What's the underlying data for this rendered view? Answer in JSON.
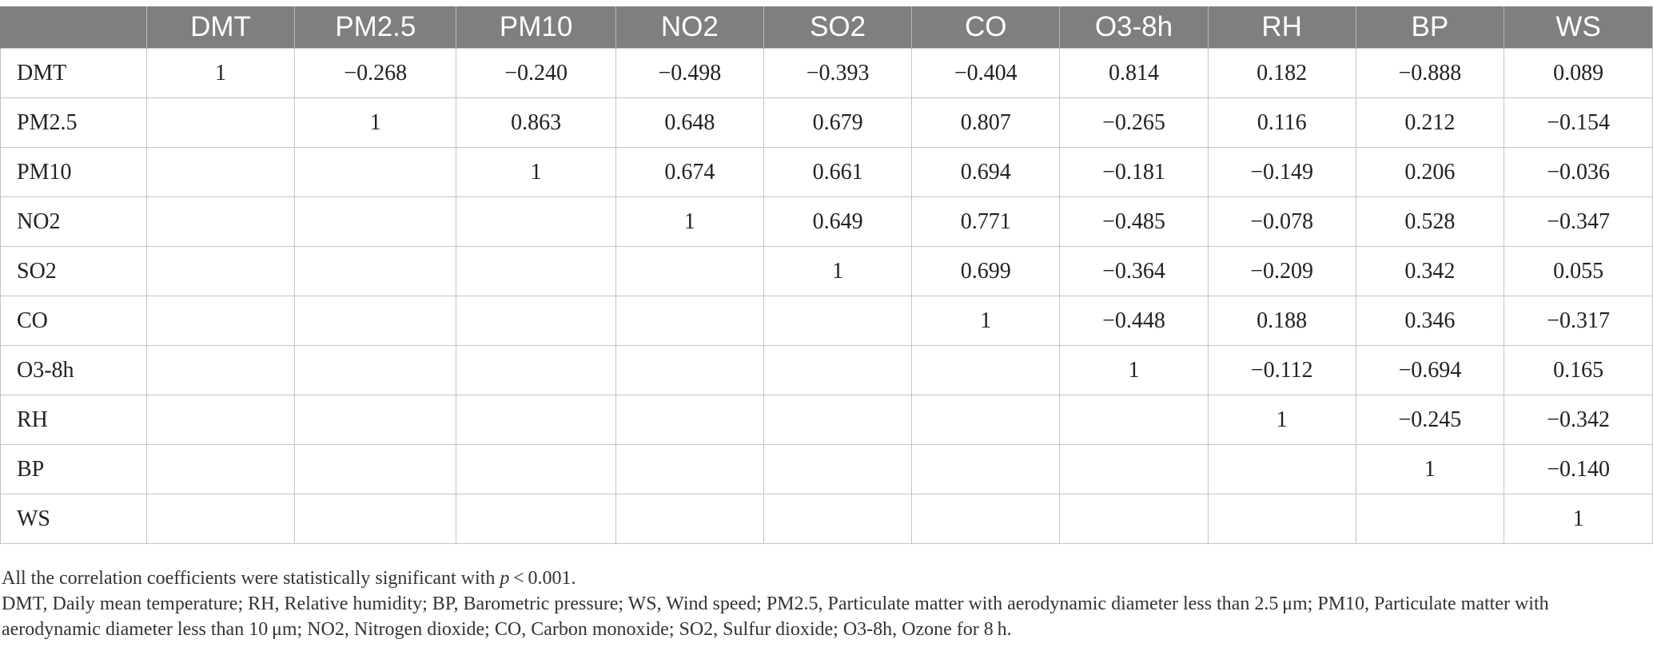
{
  "table": {
    "columns": [
      "",
      "DMT",
      "PM2.5",
      "PM10",
      "NO2",
      "SO2",
      "CO",
      "O3-8h",
      "RH",
      "BP",
      "WS"
    ],
    "rows": [
      {
        "label": "DMT",
        "cells": [
          "1",
          "−0.268",
          "−0.240",
          "−0.498",
          "−0.393",
          "−0.404",
          "0.814",
          "0.182",
          "−0.888",
          "0.089"
        ]
      },
      {
        "label": "PM2.5",
        "cells": [
          "",
          "1",
          "0.863",
          "0.648",
          "0.679",
          "0.807",
          "−0.265",
          "0.116",
          "0.212",
          "−0.154"
        ]
      },
      {
        "label": "PM10",
        "cells": [
          "",
          "",
          "1",
          "0.674",
          "0.661",
          "0.694",
          "−0.181",
          "−0.149",
          "0.206",
          "−0.036"
        ]
      },
      {
        "label": "NO2",
        "cells": [
          "",
          "",
          "",
          "1",
          "0.649",
          "0.771",
          "−0.485",
          "−0.078",
          "0.528",
          "−0.347"
        ]
      },
      {
        "label": "SO2",
        "cells": [
          "",
          "",
          "",
          "",
          "1",
          "0.699",
          "−0.364",
          "−0.209",
          "0.342",
          "0.055"
        ]
      },
      {
        "label": "CO",
        "cells": [
          "",
          "",
          "",
          "",
          "",
          "1",
          "−0.448",
          "0.188",
          "0.346",
          "−0.317"
        ]
      },
      {
        "label": "O3-8h",
        "cells": [
          "",
          "",
          "",
          "",
          "",
          "",
          "1",
          "−0.112",
          "−0.694",
          "0.165"
        ]
      },
      {
        "label": "RH",
        "cells": [
          "",
          "",
          "",
          "",
          "",
          "",
          "",
          "1",
          "−0.245",
          "−0.342"
        ]
      },
      {
        "label": "BP",
        "cells": [
          "",
          "",
          "",
          "",
          "",
          "",
          "",
          "",
          "1",
          "−0.140"
        ]
      },
      {
        "label": "WS",
        "cells": [
          "",
          "",
          "",
          "",
          "",
          "",
          "",
          "",
          "",
          "1"
        ]
      }
    ]
  },
  "notes": {
    "significance_prefix": "All the correlation coefficients were statistically significant with ",
    "significance_var": "p",
    "significance_suffix": " < 0.001.",
    "abbreviations": "DMT, Daily mean temperature; RH, Relative humidity; BP, Barometric pressure; WS, Wind speed; PM2.5, Particulate matter with aerodynamic diameter less than 2.5 μm; PM10, Particulate matter with aerodynamic diameter less than 10 μm; NO2, Nitrogen dioxide; CO, Carbon monoxide; SO2, Sulfur dioxide; O3-8h, Ozone for 8 h."
  }
}
